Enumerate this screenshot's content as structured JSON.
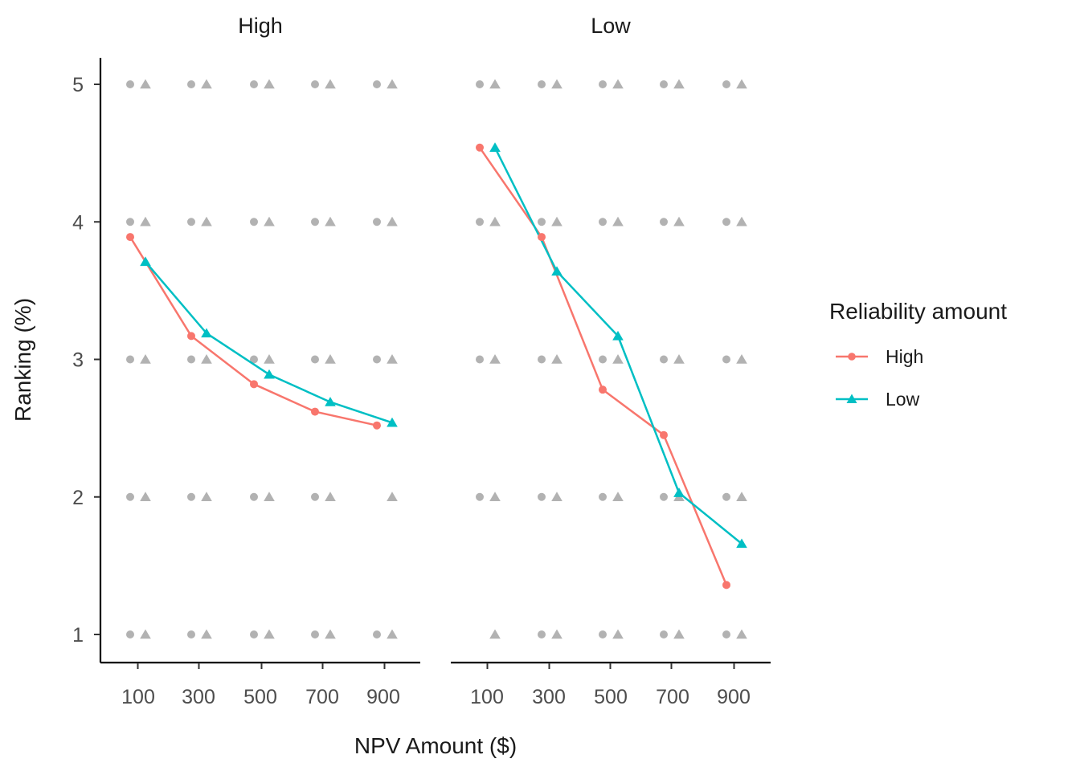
{
  "chart_data": {
    "type": "line",
    "xlabel": "NPV Amount ($)",
    "ylabel": "Ranking (%)",
    "ylim": [
      1,
      5
    ],
    "yticks": [
      "1",
      "2",
      "3",
      "4",
      "5"
    ],
    "categories": [
      "100",
      "300",
      "500",
      "700",
      "900"
    ],
    "legend": {
      "title": "Reliability amount",
      "position": "right",
      "entries": [
        "High",
        "Low"
      ]
    },
    "colors": {
      "High": "#F8766D",
      "Low": "#00BFC4",
      "raw_points": "#7f7f7f"
    },
    "panels": [
      {
        "strip": "High",
        "series": [
          {
            "name": "High",
            "marker": "circle",
            "values": [
              3.89,
              3.17,
              2.82,
              2.62,
              2.52
            ]
          },
          {
            "name": "Low",
            "marker": "triangle",
            "values": [
              3.71,
              3.19,
              2.89,
              2.69,
              2.54
            ]
          }
        ],
        "raw_points": {
          "High": [
            [
              1,
              2,
              3,
              4,
              5
            ],
            [
              1,
              2,
              3,
              4,
              5
            ],
            [
              1,
              2,
              3,
              4,
              5
            ],
            [
              1,
              2,
              3,
              4,
              5
            ],
            [
              1,
              3,
              4,
              5
            ]
          ],
          "Low": [
            [
              1,
              2,
              3,
              4,
              5
            ],
            [
              1,
              2,
              3,
              4,
              5
            ],
            [
              1,
              2,
              3,
              4,
              5
            ],
            [
              1,
              2,
              3,
              4,
              5
            ],
            [
              1,
              2,
              3,
              4,
              5
            ]
          ]
        }
      },
      {
        "strip": "Low",
        "series": [
          {
            "name": "High",
            "marker": "circle",
            "values": [
              4.54,
              3.89,
              2.78,
              2.45,
              1.36
            ]
          },
          {
            "name": "Low",
            "marker": "triangle",
            "values": [
              4.54,
              3.64,
              3.17,
              2.03,
              1.66
            ]
          }
        ],
        "raw_points": {
          "High": [
            [
              2,
              3,
              4,
              5
            ],
            [
              1,
              2,
              3,
              4,
              5
            ],
            [
              1,
              2,
              3,
              4,
              5
            ],
            [
              1,
              2,
              3,
              4,
              5
            ],
            [
              1,
              2,
              3,
              4,
              5
            ]
          ],
          "Low": [
            [
              1,
              2,
              3,
              4,
              5
            ],
            [
              1,
              2,
              3,
              4,
              5
            ],
            [
              1,
              2,
              3,
              4,
              5
            ],
            [
              1,
              2,
              3,
              4,
              5
            ],
            [
              1,
              2,
              3,
              4,
              5
            ]
          ]
        }
      }
    ]
  }
}
